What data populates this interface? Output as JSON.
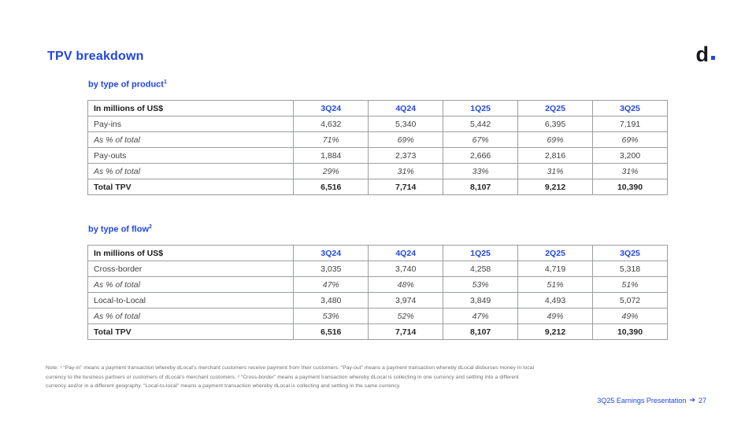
{
  "slide": {
    "title": "TPV breakdown",
    "logo_letter": "d",
    "accent_color": "#2346e2",
    "logo_dot_color": "#2346e2"
  },
  "tables": [
    {
      "subtitle": "by type of product",
      "subtitle_sup": "1",
      "header": [
        "In millions of US$",
        "3Q24",
        "4Q24",
        "1Q25",
        "2Q25",
        "3Q25"
      ],
      "rows": [
        {
          "label": "Pay-ins",
          "style": "normal",
          "values": [
            "4,632",
            "5,340",
            "5,442",
            "6,395",
            "7,191"
          ]
        },
        {
          "label": "As % of total",
          "style": "italic",
          "values": [
            "71%",
            "69%",
            "67%",
            "69%",
            "69%"
          ]
        },
        {
          "label": "Pay-outs",
          "style": "normal",
          "values": [
            "1,884",
            "2,373",
            "2,666",
            "2,816",
            "3,200"
          ]
        },
        {
          "label": "As % of total",
          "style": "italic",
          "values": [
            "29%",
            "31%",
            "33%",
            "31%",
            "31%"
          ]
        },
        {
          "label": "Total TPV",
          "style": "bold",
          "values": [
            "6,516",
            "7,714",
            "8,107",
            "9,212",
            "10,390"
          ]
        }
      ]
    },
    {
      "subtitle": "by type of flow",
      "subtitle_sup": "2",
      "header": [
        "In millions of US$",
        "3Q24",
        "4Q24",
        "1Q25",
        "2Q25",
        "3Q25"
      ],
      "rows": [
        {
          "label": "Cross-border",
          "style": "normal",
          "values": [
            "3,035",
            "3,740",
            "4,258",
            "4,719",
            "5,318"
          ]
        },
        {
          "label": "As % of total",
          "style": "italic",
          "values": [
            "47%",
            "48%",
            "53%",
            "51%",
            "51%"
          ]
        },
        {
          "label": "Local-to-Local",
          "style": "normal",
          "values": [
            "3,480",
            "3,974",
            "3,849",
            "4,493",
            "5,072"
          ]
        },
        {
          "label": "As % of total",
          "style": "italic",
          "values": [
            "53%",
            "52%",
            "47%",
            "49%",
            "49%"
          ]
        },
        {
          "label": "Total TPV",
          "style": "bold",
          "values": [
            "6,516",
            "7,714",
            "8,107",
            "9,212",
            "10,390"
          ]
        }
      ]
    }
  ],
  "note": {
    "lines": [
      "Note: ¹ “Pay-in” means a payment transaction whereby dLocal’s merchant customers receive payment from their customers. “Pay-out” means a payment transaction whereby dLocal disburses money in local",
      "currency to the business partners or customers of dLocal’s merchant customers. ² “Cross-border” means a payment transaction whereby dLocal is collecting in one currency and settling into a different",
      "currency and/or in a different geography. “Local-to-local” means a payment transaction whereby dLocal is collecting and settling in the same currency."
    ]
  },
  "footer": {
    "label": "3Q25 Earnings Presentation",
    "arrow": "➔",
    "page": "27"
  }
}
